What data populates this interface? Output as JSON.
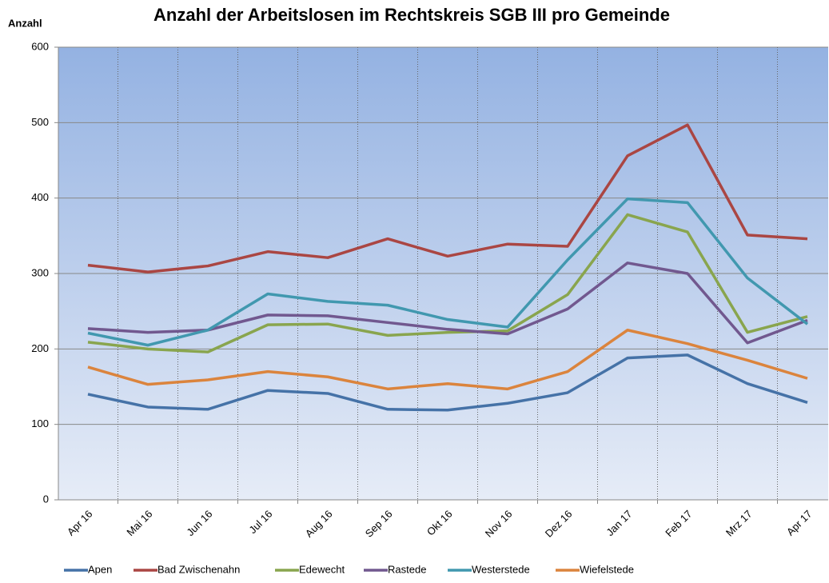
{
  "chart_data": {
    "type": "line",
    "title": "Anzahl der Arbeitslosen im Rechtskreis SGB III pro Gemeinde",
    "y_label": "Anzahl",
    "categories": [
      "Apr 16",
      "Mai 16",
      "Jun 16",
      "Jul 16",
      "Aug 16",
      "Sep 16",
      "Okt 16",
      "Nov 16",
      "Dez 16",
      "Jan 17",
      "Feb 17",
      "Mrz 17",
      "Apr 17"
    ],
    "series": [
      {
        "name": "Apen",
        "color": "#4572a7",
        "values": [
          140,
          123,
          120,
          145,
          141,
          120,
          119,
          128,
          142,
          188,
          192,
          154,
          129
        ]
      },
      {
        "name": "Bad Zwischenahn",
        "color": "#aa4643",
        "values": [
          311,
          302,
          310,
          329,
          321,
          346,
          323,
          339,
          336,
          456,
          497,
          351,
          346
        ]
      },
      {
        "name": "Edewecht",
        "color": "#89a54e",
        "values": [
          209,
          200,
          196,
          232,
          233,
          218,
          222,
          224,
          272,
          378,
          355,
          222,
          243
        ]
      },
      {
        "name": "Rastede",
        "color": "#71588f",
        "values": [
          227,
          222,
          225,
          245,
          244,
          235,
          226,
          220,
          253,
          314,
          300,
          208,
          238
        ]
      },
      {
        "name": "Westerstede",
        "color": "#4198af",
        "values": [
          221,
          205,
          225,
          273,
          263,
          258,
          239,
          229,
          318,
          399,
          394,
          294,
          233
        ]
      },
      {
        "name": "Wiefelstede",
        "color": "#db843d",
        "values": [
          176,
          153,
          159,
          170,
          163,
          147,
          154,
          147,
          170,
          225,
          207,
          185,
          161
        ]
      }
    ],
    "ylim": [
      0,
      600
    ],
    "yticks": [
      0,
      100,
      200,
      300,
      400,
      500,
      600
    ],
    "grid": true,
    "legend": "bottom"
  }
}
